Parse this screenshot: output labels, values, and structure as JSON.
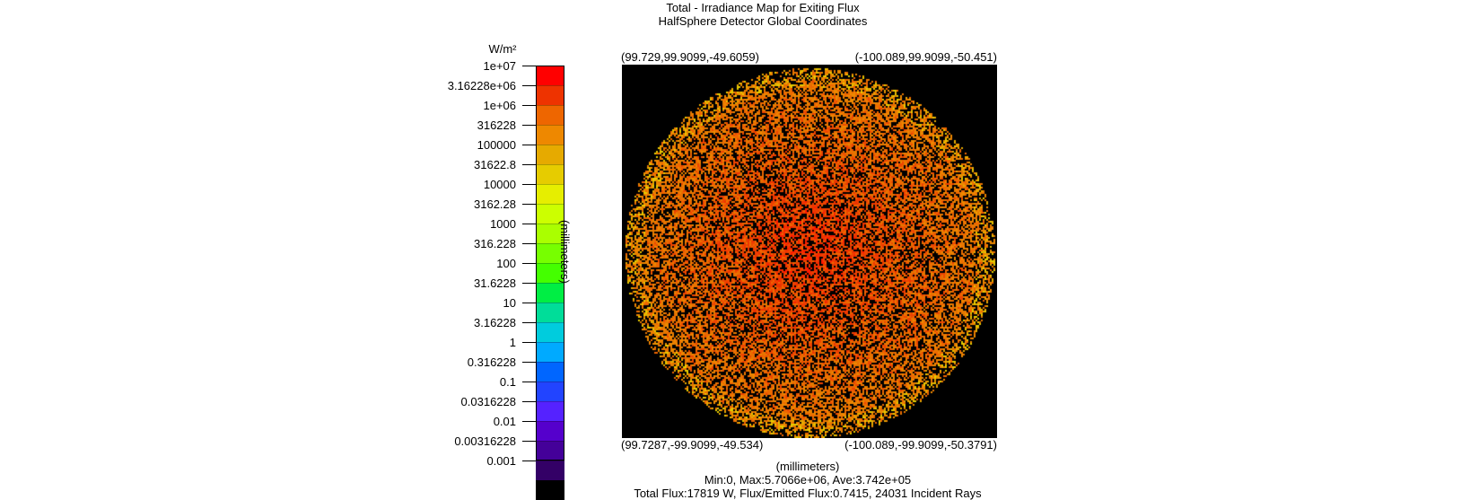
{
  "chart_data": {
    "type": "heatmap",
    "title": "Total - Irradiance Map for Exiting Flux",
    "subtitle": "HalfSphere Detector    Global Coordinates",
    "colorbar_units": "W/m²",
    "colorbar_scale": "log",
    "colorbar_ticks": [
      "1e+07",
      "3.16228e+06",
      "1e+06",
      "316228",
      "100000",
      "31622.8",
      "10000",
      "3162.28",
      "1000",
      "316.228",
      "100",
      "31.6228",
      "10",
      "3.16228",
      "1",
      "0.316228",
      "0.1",
      "0.0316228",
      "0.01",
      "0.00316228",
      "0.001"
    ],
    "colorbar_colors": [
      "#ff0000",
      "#ee3300",
      "#ee6600",
      "#ee8800",
      "#e6aa00",
      "#e6cc00",
      "#e6ee00",
      "#ccff00",
      "#aaff00",
      "#77ff00",
      "#44ff00",
      "#00ee44",
      "#00dd99",
      "#00ccdd",
      "#00aaff",
      "#0066ff",
      "#2244ff",
      "#5522ff",
      "#5500cc",
      "#440099",
      "#330066",
      "#000000"
    ],
    "ylabel": "(millimeters)",
    "xlabel": "(millimeters)",
    "corners": {
      "top_left": "(99.729,99.9099,-49.6059)",
      "top_right": "(-100.089,99.9099,-50.451)",
      "bottom_left": "(99.7287,-99.9099,-49.534)",
      "bottom_right": "(-100.089,-99.9099,-50.3791)"
    },
    "stats": {
      "min": "0",
      "max": "5.7066e+06",
      "ave": "3.742e+05",
      "line": "Min:0, Max:5.7066e+06, Ave:3.742e+05"
    },
    "flux_summary": "Total Flux:17819 W, Flux/Emitted Flux:0.7415, 24031 Incident Rays",
    "map_description": {
      "shape": "circular",
      "background": "#000000",
      "center_color": "#ee3300",
      "edge_color": "#e6aa00"
    }
  }
}
